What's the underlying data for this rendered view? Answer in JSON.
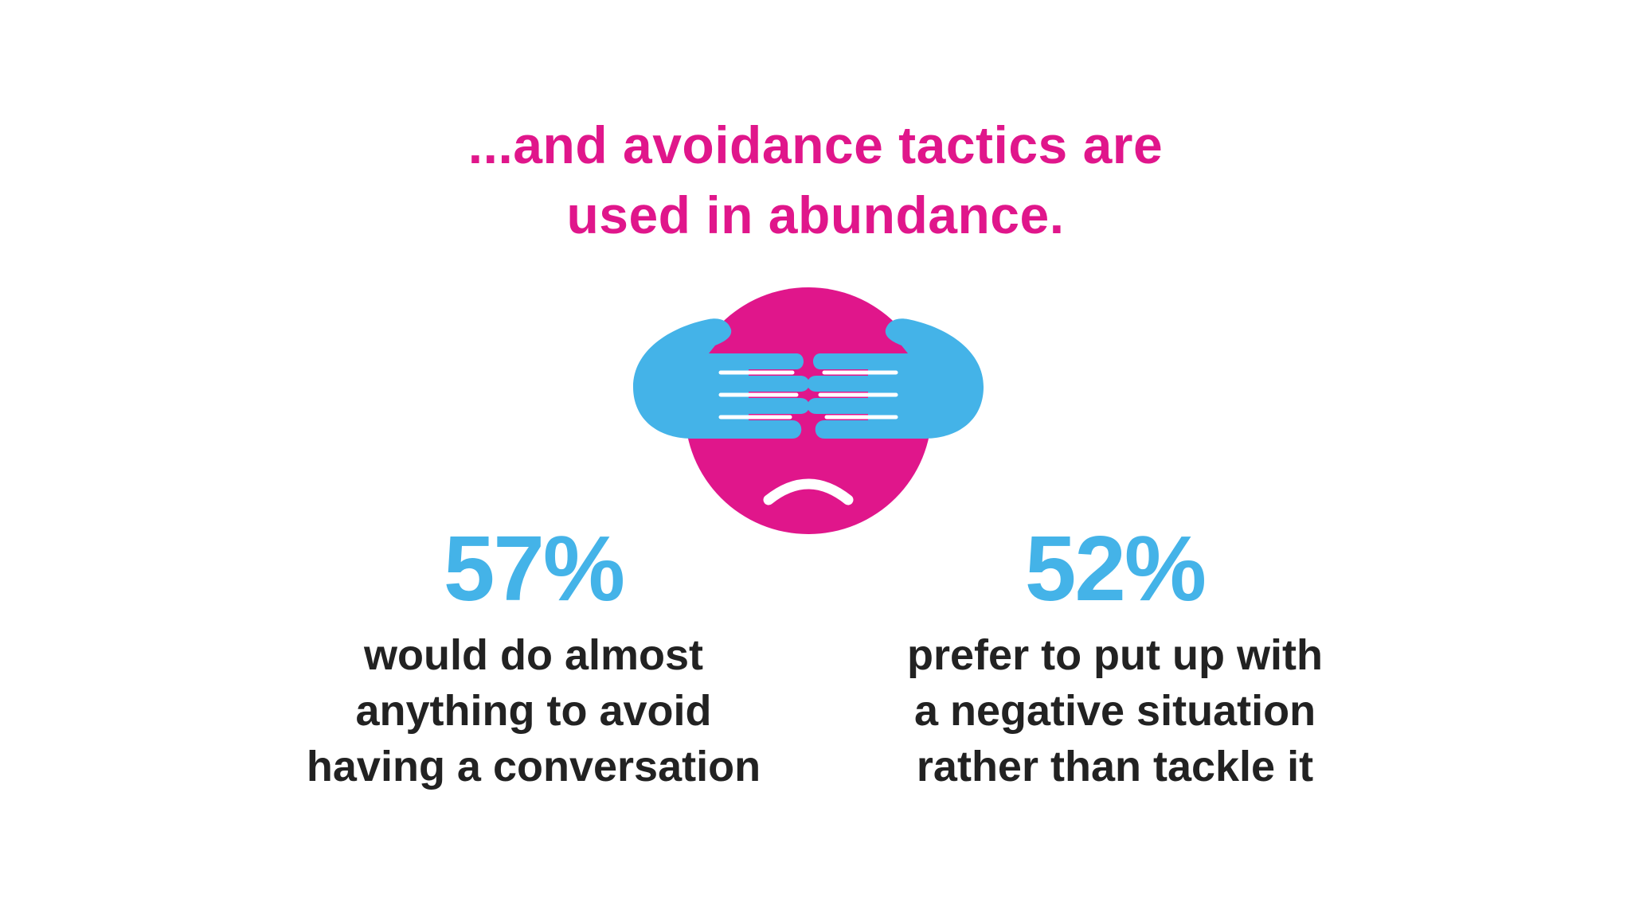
{
  "headline": {
    "lines": [
      "...and avoidance tactics are",
      "used in abundance."
    ],
    "color": "#e0168b"
  },
  "illustration": {
    "icon": "sad-face-covering-eyes-icon",
    "face_color": "#e0168b",
    "hands_color": "#44b3e8"
  },
  "stats": [
    {
      "value": "57%",
      "desc_lines": [
        "would do almost",
        "anything to avoid",
        "having a conversation"
      ]
    },
    {
      "value": "52%",
      "desc_lines": [
        "prefer to put up with",
        "a negative situation",
        "rather than tackle it"
      ]
    }
  ],
  "colors": {
    "accent_pink": "#e0168b",
    "accent_blue": "#44b3e8",
    "text_dark": "#222222"
  }
}
